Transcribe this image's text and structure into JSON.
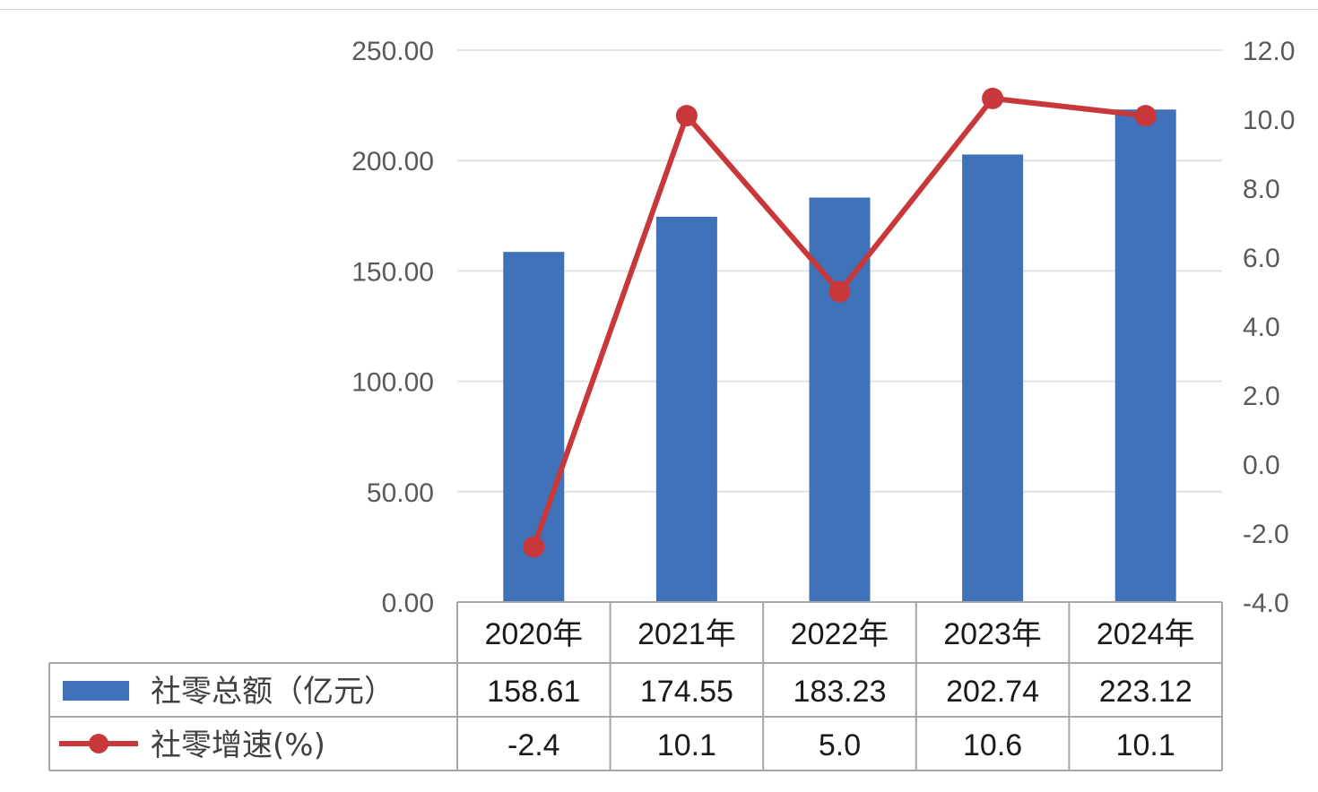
{
  "chart_data": {
    "type": "bar",
    "categories": [
      "2020年",
      "2021年",
      "2022年",
      "2023年",
      "2024年"
    ],
    "series": [
      {
        "name": "社零总额（亿元）",
        "type": "bar",
        "axis": "left",
        "values": [
          158.61,
          174.55,
          183.23,
          202.74,
          223.12
        ],
        "labels": [
          "158.61",
          "174.55",
          "183.23",
          "202.74",
          "223.12"
        ],
        "color": "#3f72b8"
      },
      {
        "name": "社零增速(%)",
        "type": "line",
        "axis": "right",
        "values": [
          -2.4,
          10.1,
          5.0,
          10.6,
          10.1
        ],
        "labels": [
          "-2.4",
          "10.1",
          "5.0",
          "10.6",
          "10.1"
        ],
        "color": "#c8383a"
      }
    ],
    "y_left": {
      "min": 0,
      "max": 250,
      "ticks": [
        "0.00",
        "50.00",
        "100.00",
        "150.00",
        "200.00",
        "250.00"
      ]
    },
    "y_right": {
      "min": -4,
      "max": 12,
      "ticks": [
        "-4.0",
        "-2.0",
        "0.0",
        "2.0",
        "4.0",
        "6.0",
        "8.0",
        "10.0",
        "12.0"
      ]
    },
    "grid": true,
    "legend": "data-table"
  }
}
